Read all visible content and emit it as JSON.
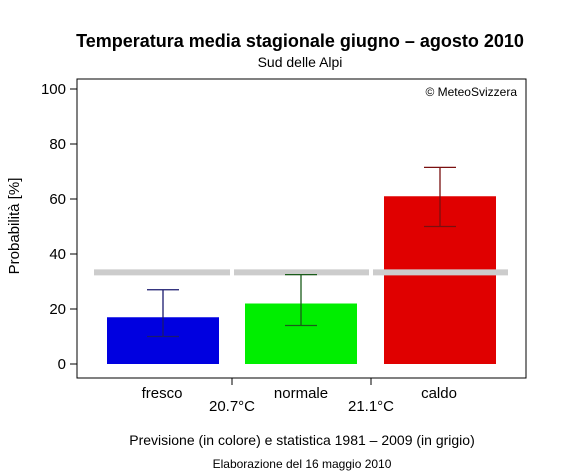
{
  "chart_data": {
    "type": "bar",
    "title": "Temperatura media stagionale giugno – agosto 2010",
    "subtitle": "Sud delle Alpi",
    "ylabel": "Probabilità [%]",
    "ylim": [
      0,
      100
    ],
    "yticks": [
      "0",
      "20",
      "40",
      "60",
      "80",
      "100"
    ],
    "categories": [
      "fresco",
      "normale",
      "caldo"
    ],
    "values": [
      17,
      22,
      61
    ],
    "error_low": [
      10,
      14,
      50
    ],
    "error_high": [
      27,
      32.5,
      71.5
    ],
    "climatology": 33.3,
    "bar_colors": [
      "#0000e0",
      "#00ee00",
      "#e00000"
    ],
    "error_colors": [
      "#1a1a6e",
      "#1a5c1a",
      "#7a1010"
    ],
    "climatology_color": "#cccccc",
    "thresholds": [
      "20.7°C",
      "21.1°C"
    ],
    "copyright": "© MeteoSvizzera",
    "footer": "Previsione (in colore) e statistica 1981 – 2009 (in grigio)",
    "footer2": "Elaborazione del 16 maggio 2010",
    "grid": false
  }
}
